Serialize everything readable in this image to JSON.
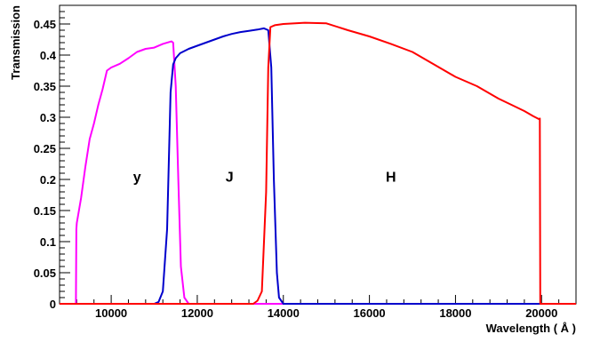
{
  "chart_data": {
    "type": "line",
    "title": "",
    "xlabel": "Wavelength ( Å )",
    "ylabel": "Transmission",
    "xlim": [
      8800,
      20800
    ],
    "ylim": [
      0,
      0.48
    ],
    "xticks": [
      10000,
      12000,
      14000,
      16000,
      18000,
      20000
    ],
    "xtick_labels": [
      "10000",
      "12000",
      "14000",
      "16000",
      "18000",
      "20000"
    ],
    "yticks": [
      0,
      0.05,
      0.1,
      0.15,
      0.2,
      0.25,
      0.3,
      0.35,
      0.4,
      0.45
    ],
    "ytick_labels": [
      "0",
      "0.05",
      "0.1",
      "0.15",
      "0.2",
      "0.25",
      "0.3",
      "0.35",
      "0.4",
      "0.45"
    ],
    "grid": false,
    "colors": {
      "y": "#ff00ff",
      "J": "#0000cc",
      "H": "#ff0000"
    },
    "series": [
      {
        "name": "y",
        "x": [
          8800,
          9180,
          9190,
          9200,
          9300,
          9400,
          9500,
          9600,
          9700,
          9800,
          9900,
          10000,
          10200,
          10400,
          10600,
          10800,
          11000,
          11200,
          11400,
          11440,
          11500,
          11560,
          11620,
          11700,
          11800,
          20800
        ],
        "y": [
          0,
          0,
          0.12,
          0.13,
          0.17,
          0.22,
          0.265,
          0.29,
          0.32,
          0.345,
          0.375,
          0.38,
          0.386,
          0.395,
          0.405,
          0.41,
          0.412,
          0.418,
          0.422,
          0.42,
          0.35,
          0.2,
          0.06,
          0.01,
          0,
          0
        ]
      },
      {
        "name": "J",
        "x": [
          8800,
          11000,
          11100,
          11200,
          11300,
          11380,
          11440,
          11500,
          11600,
          11800,
          12000,
          12200,
          12400,
          12600,
          12800,
          13000,
          13200,
          13400,
          13550,
          13650,
          13720,
          13780,
          13850,
          13900,
          14000,
          20800
        ],
        "y": [
          0,
          0,
          0.003,
          0.02,
          0.12,
          0.34,
          0.385,
          0.395,
          0.403,
          0.41,
          0.415,
          0.42,
          0.425,
          0.43,
          0.434,
          0.437,
          0.439,
          0.441,
          0.443,
          0.44,
          0.38,
          0.2,
          0.05,
          0.01,
          0,
          0
        ]
      },
      {
        "name": "H",
        "x": [
          8800,
          13300,
          13400,
          13500,
          13600,
          13650,
          13700,
          13800,
          14000,
          14500,
          15000,
          15500,
          16000,
          16500,
          17000,
          17500,
          18000,
          18500,
          19000,
          19300,
          19600,
          19800,
          19940,
          19960,
          19970,
          20800
        ],
        "y": [
          0,
          0,
          0.005,
          0.02,
          0.18,
          0.38,
          0.445,
          0.448,
          0.45,
          0.452,
          0.451,
          0.44,
          0.43,
          0.418,
          0.405,
          0.385,
          0.365,
          0.35,
          0.33,
          0.32,
          0.31,
          0.302,
          0.297,
          0.298,
          0,
          0
        ]
      }
    ],
    "annotations": [
      {
        "text": "y",
        "x": 10600,
        "y": 0.205
      },
      {
        "text": "J",
        "x": 12750,
        "y": 0.205
      },
      {
        "text": "H",
        "x": 16500,
        "y": 0.205
      }
    ]
  }
}
